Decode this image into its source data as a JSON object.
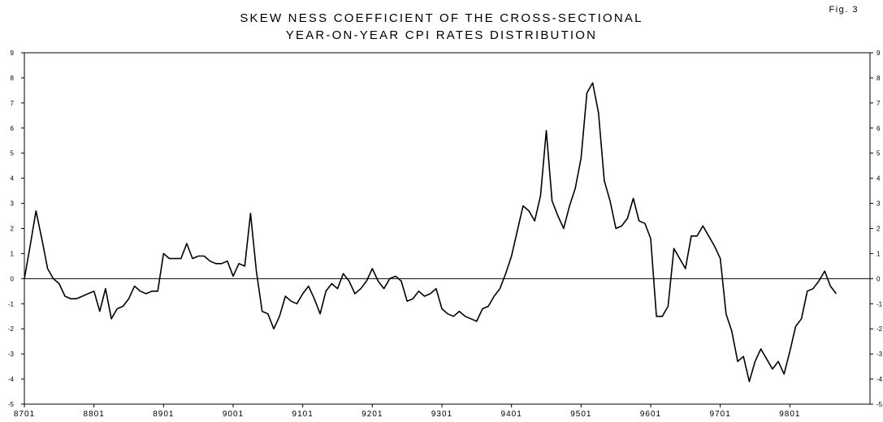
{
  "figure_label": "Fig. 3",
  "chart_data": {
    "type": "line",
    "title_line1": "SKEW NESS COEFFICIENT OF THE CROSS-SECTIONAL",
    "title_line2": "YEAR-ON-YEAR CPI RATES DISTRIBUTION",
    "xlabel": "",
    "ylabel": "",
    "ylim": [
      -5,
      9
    ],
    "yticks": [
      -5,
      -4,
      -3,
      -2,
      -1,
      0,
      1,
      2,
      3,
      4,
      5,
      6,
      7,
      8,
      9
    ],
    "xtick_labels": [
      "8701",
      "8801",
      "8901",
      "9001",
      "9101",
      "9201",
      "9301",
      "9401",
      "9501",
      "9601",
      "9701",
      "9801"
    ],
    "grid": false,
    "zero_line": true,
    "legend": "none",
    "x_start": "8701",
    "x_frequency": "monthly",
    "series": [
      {
        "values": [
          0.0,
          1.3,
          2.7,
          1.6,
          0.4,
          0.0,
          -0.2,
          -0.7,
          -0.8,
          -0.8,
          -0.7,
          -0.6,
          -0.5,
          -1.3,
          -0.4,
          -1.6,
          -1.2,
          -1.1,
          -0.8,
          -0.3,
          -0.5,
          -0.6,
          -0.5,
          -0.5,
          1.0,
          0.8,
          0.8,
          0.8,
          1.4,
          0.8,
          0.9,
          0.9,
          0.7,
          0.6,
          0.6,
          0.7,
          0.1,
          0.6,
          0.5,
          2.6,
          0.3,
          -1.3,
          -1.4,
          -2.0,
          -1.5,
          -0.7,
          -0.9,
          -1.0,
          -0.6,
          -0.3,
          -0.8,
          -1.4,
          -0.5,
          -0.2,
          -0.4,
          0.2,
          -0.1,
          -0.6,
          -0.4,
          -0.1,
          0.4,
          -0.1,
          -0.4,
          0.0,
          0.1,
          -0.1,
          -0.9,
          -0.8,
          -0.5,
          -0.7,
          -0.6,
          -0.4,
          -1.2,
          -1.4,
          -1.5,
          -1.3,
          -1.5,
          -1.6,
          -1.7,
          -1.2,
          -1.1,
          -0.7,
          -0.4,
          0.2,
          0.9,
          1.9,
          2.9,
          2.7,
          2.3,
          3.3,
          5.9,
          3.1,
          2.5,
          2.0,
          2.9,
          3.6,
          4.8,
          7.4,
          7.8,
          6.6,
          3.9,
          3.1,
          2.0,
          2.1,
          2.4,
          3.2,
          2.3,
          2.2,
          1.6,
          -1.5,
          -1.5,
          -1.1,
          1.2,
          0.8,
          0.4,
          1.7,
          1.7,
          2.1,
          1.7,
          1.3,
          0.8,
          -1.4,
          -2.1,
          -3.3,
          -3.1,
          -4.1,
          -3.3,
          -2.8,
          -3.2,
          -3.6,
          -3.3,
          -3.8,
          -2.9,
          -1.9,
          -1.6,
          -0.5,
          -0.4,
          -0.1,
          0.3,
          -0.3,
          -0.6
        ]
      }
    ]
  }
}
